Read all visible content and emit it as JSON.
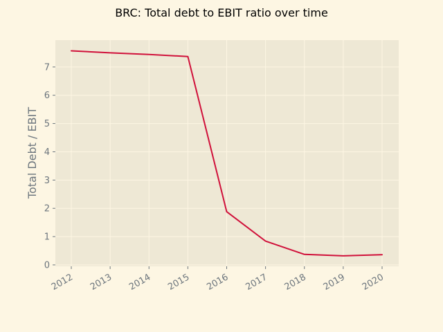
{
  "chart_data": {
    "type": "line",
    "title": "BRC: Total debt to EBIT ratio over time",
    "xlabel": "",
    "ylabel": "Total Debt / EBIT",
    "x": [
      "2012",
      "2013",
      "2014",
      "2015",
      "2016",
      "2017",
      "2018",
      "2019",
      "2020"
    ],
    "series": [
      {
        "values": [
          7.57,
          7.5,
          7.44,
          7.37,
          1.88,
          0.84,
          0.37,
          0.32,
          0.36
        ],
        "color": "#d0103a"
      }
    ],
    "ylim": [
      -0.05,
      7.95
    ],
    "yticks": [
      "0",
      "1",
      "2",
      "3",
      "4",
      "5",
      "6",
      "7"
    ],
    "grid": true,
    "colors": {
      "background": "#fdf6e3",
      "plot_background": "#eee8d5",
      "grid": "#fdf6e3",
      "tick_text": "#6c757d"
    }
  }
}
